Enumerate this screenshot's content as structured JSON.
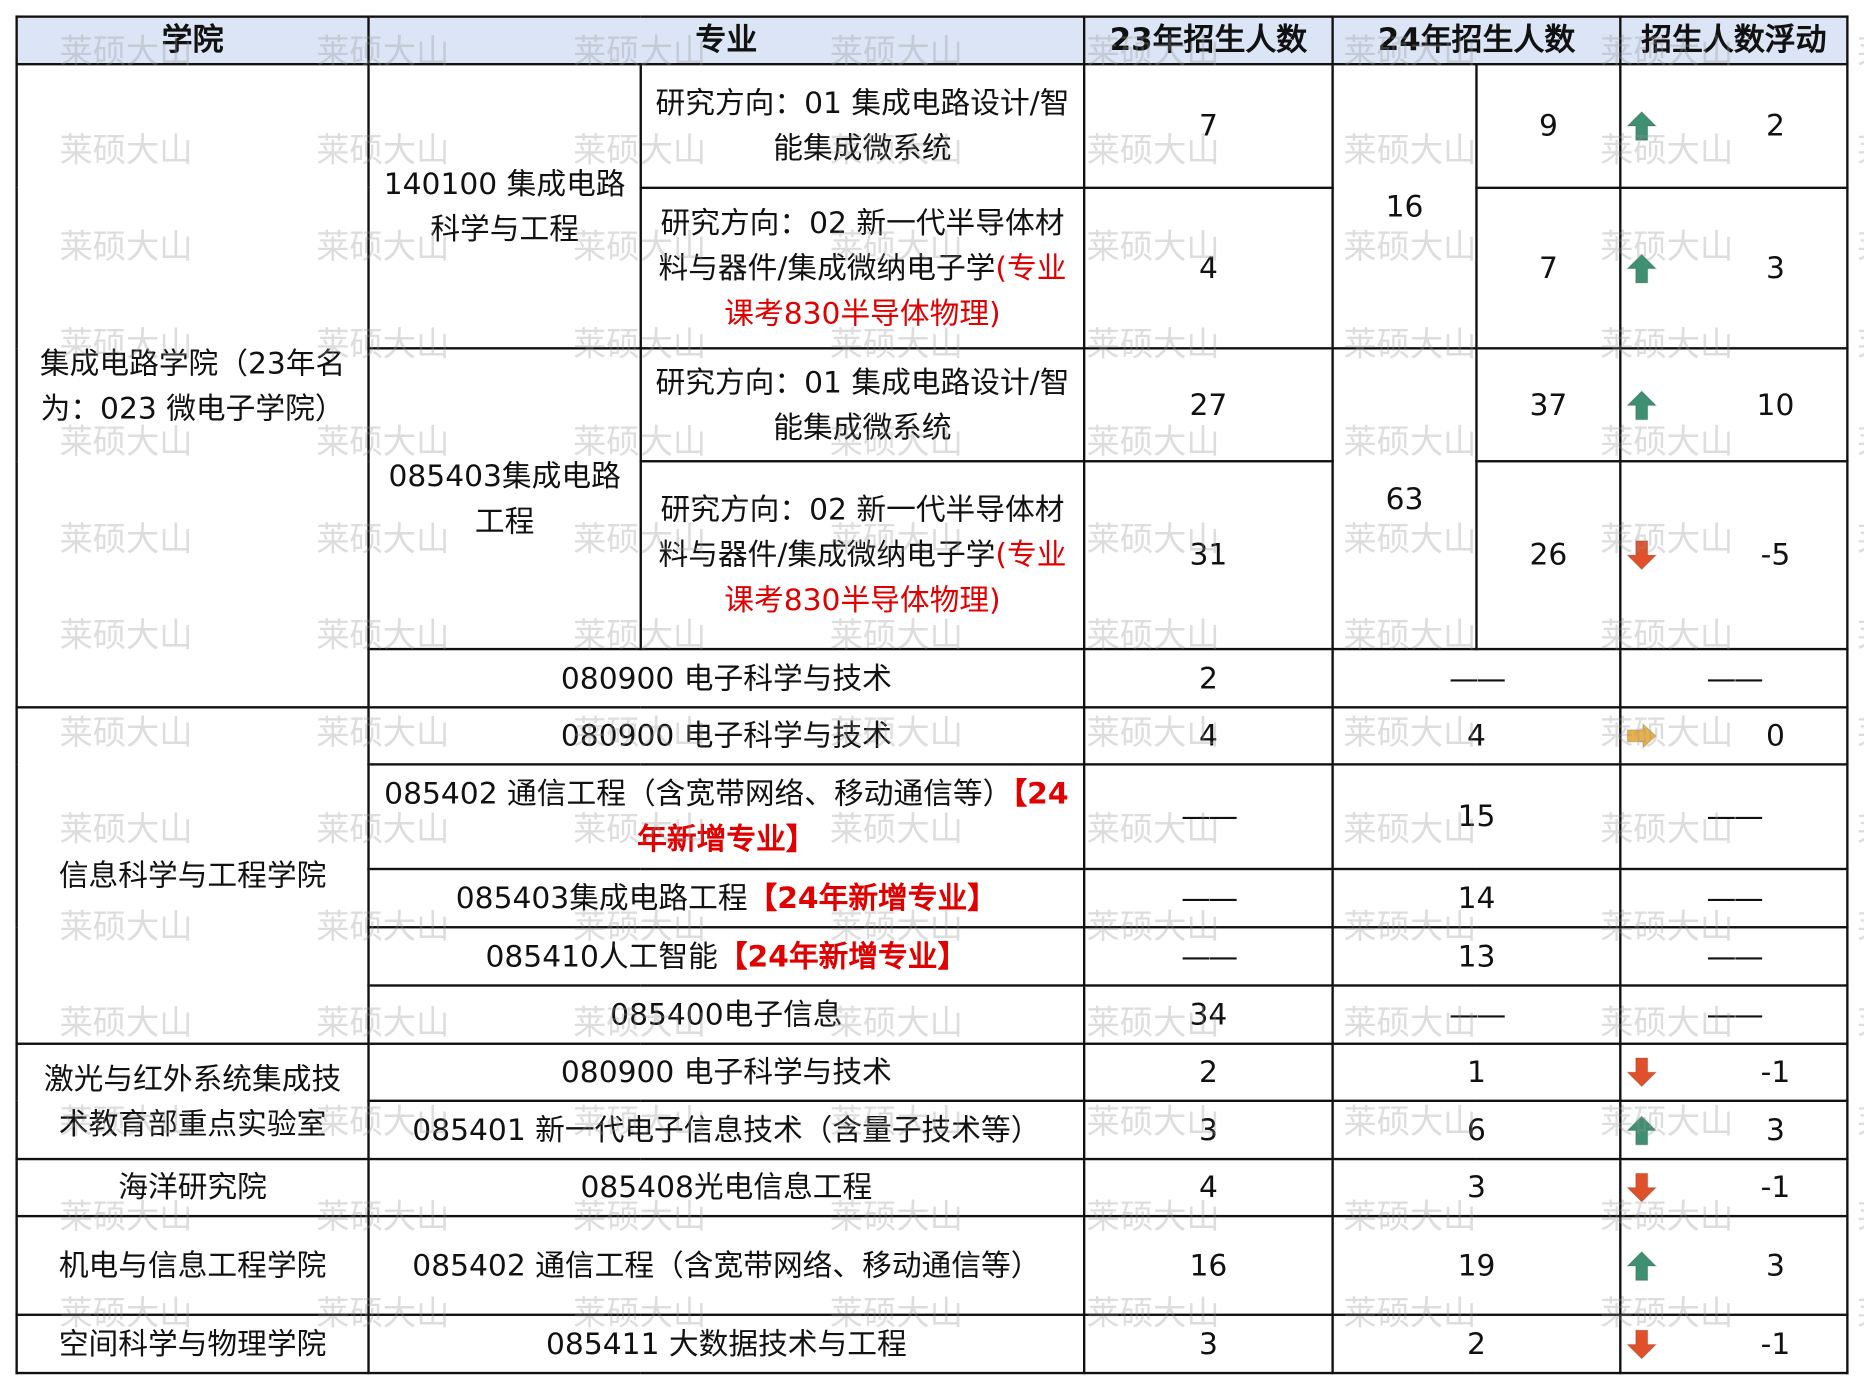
{
  "watermark": "莱硕大山",
  "colors": {
    "header_bg": "#dbe5f5",
    "highlight_red": "#e00000",
    "up": "#3f8f73",
    "down": "#e0502a",
    "flat": "#e8b04a"
  },
  "header": {
    "college": "学院",
    "major": "专业",
    "y23": "23年招生人数",
    "y24": "24年招生人数",
    "change": "招生人数浮动"
  },
  "dash": "——",
  "new_tag": "【24年新增专业】",
  "ic": {
    "college": "集成电路学院（23年名为：023 微电子学院）",
    "m1": "140100 集成电路科学与工程",
    "m2": "085403集成电路工程",
    "m3": "080900 电子科学与技术",
    "dir1": "研究方向：01 集成电路设计/智能集成微系统",
    "dir2": "研究方向：02 新一代半导体材料与器件/集成微纳电子学",
    "dir2_note": "(专业课考830半导体物理)",
    "r1": {
      "y23": "7",
      "y24": "9",
      "change": "2",
      "trend": "up"
    },
    "r2": {
      "y23": "4",
      "y24": "7",
      "change": "3",
      "trend": "up"
    },
    "m1_total24": "16",
    "r3": {
      "y23": "27",
      "y24": "37",
      "change": "10",
      "trend": "up"
    },
    "r4": {
      "y23": "31",
      "y24": "26",
      "change": "-5",
      "trend": "down"
    },
    "m2_total24": "63",
    "r5": {
      "y23": "2"
    }
  },
  "info": {
    "college": "信息科学与工程学院",
    "r1": {
      "major": "080900 电子科学与技术",
      "y23": "4",
      "y24": "4",
      "change": "0",
      "trend": "flat"
    },
    "r2": {
      "major": "085402 通信工程（含宽带网络、移动通信等）",
      "y24": "15"
    },
    "r3": {
      "major": "085403集成电路工程",
      "y24": "14"
    },
    "r4": {
      "major": "085410人工智能",
      "y24": "13"
    },
    "r5": {
      "major": "085400电子信息",
      "y23": "34"
    }
  },
  "laser": {
    "college": "激光与红外系统集成技术教育部重点实验室",
    "r1": {
      "major": "080900 电子科学与技术",
      "y23": "2",
      "y24": "1",
      "change": "-1",
      "trend": "down"
    },
    "r2": {
      "major": "085401 新一代电子信息技术（含量子技术等）",
      "y23": "3",
      "y24": "6",
      "change": "3",
      "trend": "up"
    }
  },
  "ocean": {
    "college": "海洋研究院",
    "major": "085408光电信息工程",
    "y23": "4",
    "y24": "3",
    "change": "-1",
    "trend": "down"
  },
  "mech": {
    "college": "机电与信息工程学院",
    "major": "085402 通信工程（含宽带网络、移动通信等）",
    "y23": "16",
    "y24": "19",
    "change": "3",
    "trend": "up"
  },
  "space": {
    "college": "空间科学与物理学院",
    "major": "085411 大数据技术与工程",
    "y23": "3",
    "y24": "2",
    "change": "-1",
    "trend": "down"
  }
}
